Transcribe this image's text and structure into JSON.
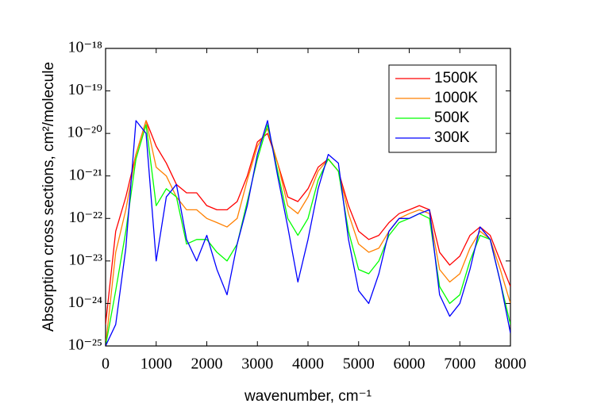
{
  "chart_data": {
    "type": "line",
    "xlabel": "wavenumber, cm⁻¹",
    "ylabel": "Absorption cross sections, cm²/molecule",
    "x": [
      0,
      200,
      400,
      600,
      800,
      1000,
      1200,
      1400,
      1600,
      1800,
      2000,
      2200,
      2400,
      2600,
      2800,
      3000,
      3200,
      3400,
      3600,
      3800,
      4000,
      4200,
      4400,
      4600,
      4800,
      5000,
      5200,
      5400,
      5600,
      5800,
      6000,
      6200,
      6400,
      6600,
      6800,
      7000,
      7200,
      7400,
      7600,
      7800,
      8000
    ],
    "series": [
      {
        "name": "1500K",
        "color": "#ff0000",
        "values": [
          3.2e-25,
          5e-23,
          3.2e-22,
          3.2e-21,
          2e-20,
          5e-21,
          2e-21,
          6.3e-22,
          4e-22,
          4e-22,
          2e-22,
          1.6e-22,
          1.6e-22,
          2.5e-22,
          1e-21,
          6.3e-21,
          1e-20,
          2e-21,
          3.2e-22,
          2.5e-22,
          5e-22,
          1.6e-21,
          2.5e-21,
          1.3e-21,
          2e-22,
          5e-23,
          3.2e-23,
          4e-23,
          8e-23,
          1.3e-22,
          1.6e-22,
          2e-22,
          1.6e-22,
          1.6e-23,
          8e-24,
          1.3e-23,
          4e-23,
          6.3e-23,
          4e-23,
          1e-23,
          2.5e-24
        ]
      },
      {
        "name": "1000K",
        "color": "#ff8000",
        "values": [
          1e-25,
          1.6e-23,
          1.6e-22,
          3.2e-21,
          2e-20,
          1.6e-21,
          1e-21,
          3.2e-22,
          1.6e-22,
          1.6e-22,
          1e-22,
          8e-23,
          6.3e-23,
          1e-22,
          8e-22,
          5e-21,
          1.3e-20,
          2e-21,
          2e-22,
          1.3e-22,
          3.2e-22,
          1.3e-21,
          2.5e-21,
          1.3e-21,
          1.3e-22,
          2.5e-23,
          1.6e-23,
          2e-23,
          5e-23,
          1e-22,
          1.3e-22,
          1.6e-22,
          1.3e-22,
          6.3e-24,
          3.2e-24,
          5e-24,
          2e-23,
          5e-23,
          3.2e-23,
          6.3e-24,
          1e-24
        ]
      },
      {
        "name": "500K",
        "color": "#00ff00",
        "values": [
          1e-25,
          2e-24,
          5e-23,
          2.5e-21,
          1.6e-20,
          2e-22,
          5e-22,
          3.2e-22,
          2.5e-23,
          3.2e-23,
          3.2e-23,
          1.6e-23,
          1e-23,
          2.5e-23,
          2.5e-22,
          2.5e-21,
          1.6e-20,
          1.3e-21,
          1e-22,
          4e-23,
          1e-22,
          8e-22,
          2.5e-21,
          1.3e-21,
          5e-23,
          6.3e-24,
          5e-24,
          1e-23,
          4e-23,
          8e-23,
          1e-22,
          1.3e-22,
          1e-22,
          2.5e-24,
          1e-24,
          1.6e-24,
          1e-23,
          4e-23,
          3.2e-23,
          3.2e-24,
          3.2e-25
        ]
      },
      {
        "name": "300K",
        "color": "#0000ff",
        "values": [
          1e-25,
          3.2e-25,
          2e-23,
          2e-20,
          1e-20,
          1e-23,
          3.2e-22,
          6.3e-22,
          3.2e-23,
          1e-23,
          4e-23,
          6.3e-24,
          1.6e-24,
          2.5e-23,
          2e-22,
          3.2e-21,
          2e-20,
          1e-21,
          6.3e-23,
          3.2e-24,
          3.2e-23,
          5e-22,
          3.2e-21,
          2e-21,
          3.2e-23,
          2e-24,
          1e-24,
          5e-24,
          5e-23,
          1e-22,
          1e-22,
          1.3e-22,
          1.6e-22,
          1.6e-24,
          5e-25,
          1e-24,
          6.3e-24,
          6.3e-23,
          3.2e-23,
          3.2e-24,
          2e-25
        ]
      }
    ],
    "xlim": [
      0,
      8000
    ],
    "xticks": [
      0,
      1000,
      2000,
      3000,
      4000,
      5000,
      6000,
      7000,
      8000
    ],
    "ylim": [
      1e-25,
      1e-18
    ],
    "ylog": true,
    "yticks": [
      {
        "value": 1e-25,
        "label": "10⁻²⁵"
      },
      {
        "value": 1e-24,
        "label": "10⁻²⁴"
      },
      {
        "value": 1e-23,
        "label": "10⁻²³"
      },
      {
        "value": 1e-22,
        "label": "10⁻²²"
      },
      {
        "value": 1e-21,
        "label": "10⁻²¹"
      },
      {
        "value": 1e-20,
        "label": "10⁻²⁰"
      },
      {
        "value": 1e-19,
        "label": "10⁻¹⁹"
      },
      {
        "value": 1e-18,
        "label": "10⁻¹⁸"
      }
    ],
    "legend": "upper right"
  }
}
